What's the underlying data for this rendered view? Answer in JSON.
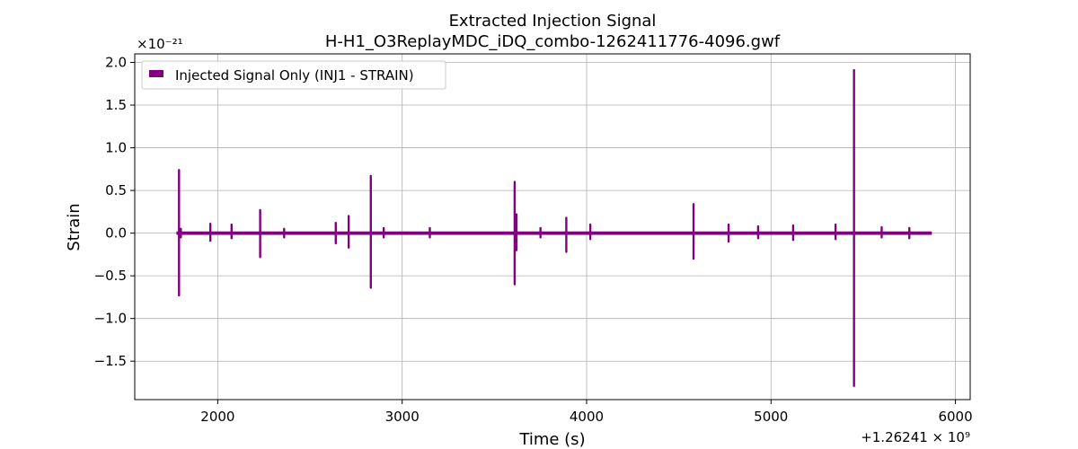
{
  "chart_data": {
    "type": "line",
    "title": "Extracted Injection Signal",
    "subtitle": "H-H1_O3ReplayMDC_iDQ_combo-1262411776-4096.gwf",
    "xlabel": "Time (s)",
    "ylabel": "Strain",
    "x_offset_label": "+1.26241 × 10⁹",
    "y_scale_label": "×10⁻²¹",
    "xlim": [
      1550,
      6080
    ],
    "ylim": [
      -1.95,
      2.1
    ],
    "x_ticks": [
      2000,
      3000,
      4000,
      5000,
      6000
    ],
    "x_tick_labels": [
      "2000",
      "3000",
      "4000",
      "5000",
      "6000"
    ],
    "y_ticks": [
      -1.5,
      -1.0,
      -0.5,
      0.0,
      0.5,
      1.0,
      1.5,
      2.0
    ],
    "y_tick_labels": [
      "−1.5",
      "−1.0",
      "−0.5",
      "0.0",
      "0.5",
      "1.0",
      "1.5",
      "2.0"
    ],
    "grid": true,
    "legend_position": "top-left",
    "series": [
      {
        "name": "Injected Signal Only (INJ1 - STRAIN)",
        "color": "#800080",
        "x_range": [
          1776,
          5872
        ],
        "baseline_amplitude": 0.02,
        "spikes": [
          {
            "x": 1790,
            "max": 0.74,
            "min": -0.73
          },
          {
            "x": 1800,
            "max": 0.05,
            "min": -0.05
          },
          {
            "x": 1960,
            "max": 0.11,
            "min": -0.09
          },
          {
            "x": 2075,
            "max": 0.1,
            "min": -0.06
          },
          {
            "x": 2230,
            "max": 0.27,
            "min": -0.28
          },
          {
            "x": 2360,
            "max": 0.05,
            "min": -0.05
          },
          {
            "x": 2640,
            "max": 0.12,
            "min": -0.12
          },
          {
            "x": 2710,
            "max": 0.2,
            "min": -0.17
          },
          {
            "x": 2830,
            "max": 0.67,
            "min": -0.64
          },
          {
            "x": 2900,
            "max": 0.06,
            "min": -0.05
          },
          {
            "x": 3150,
            "max": 0.06,
            "min": -0.05
          },
          {
            "x": 3610,
            "max": 0.6,
            "min": -0.6
          },
          {
            "x": 3620,
            "max": 0.22,
            "min": -0.2
          },
          {
            "x": 3750,
            "max": 0.06,
            "min": -0.05
          },
          {
            "x": 3890,
            "max": 0.18,
            "min": -0.22
          },
          {
            "x": 4020,
            "max": 0.1,
            "min": -0.07
          },
          {
            "x": 4580,
            "max": 0.34,
            "min": -0.3
          },
          {
            "x": 4770,
            "max": 0.1,
            "min": -0.1
          },
          {
            "x": 4930,
            "max": 0.08,
            "min": -0.06
          },
          {
            "x": 5120,
            "max": 0.09,
            "min": -0.08
          },
          {
            "x": 5350,
            "max": 0.1,
            "min": -0.07
          },
          {
            "x": 5450,
            "max": 1.91,
            "min": -1.79
          },
          {
            "x": 5600,
            "max": 0.07,
            "min": -0.05
          },
          {
            "x": 5750,
            "max": 0.06,
            "min": -0.06
          }
        ]
      }
    ]
  }
}
